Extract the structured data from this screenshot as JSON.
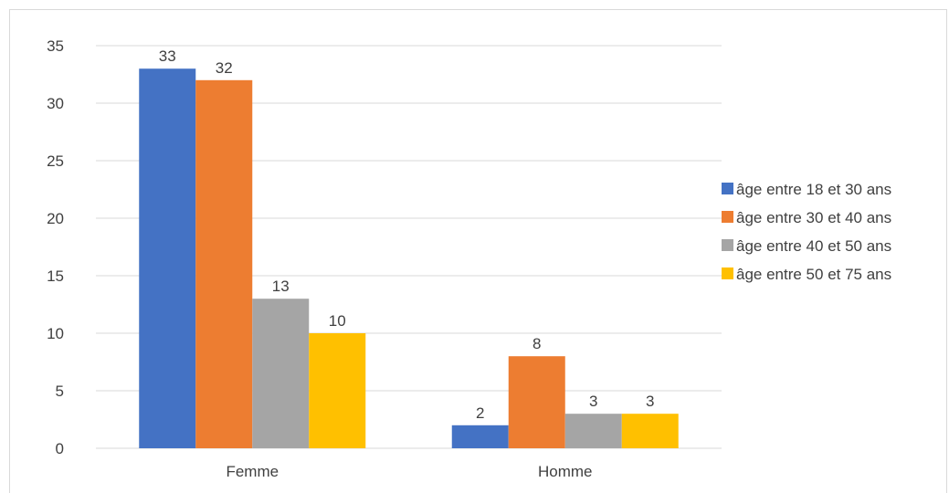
{
  "chart_data": {
    "type": "bar",
    "categories": [
      "Femme",
      "Homme"
    ],
    "series": [
      {
        "name": "âge entre 18 et 30 ans",
        "values": [
          33,
          2
        ],
        "color": "#4472C4"
      },
      {
        "name": "âge entre 30 et 40 ans",
        "values": [
          32,
          8
        ],
        "color": "#ED7D31"
      },
      {
        "name": "âge entre 40 et 50 ans",
        "values": [
          13,
          3
        ],
        "color": "#A5A5A5"
      },
      {
        "name": "âge entre 50 et 75 ans",
        "values": [
          10,
          3
        ],
        "color": "#FFC000"
      }
    ],
    "ylim": [
      0,
      35
    ],
    "yticks": [
      0,
      5,
      10,
      15,
      20,
      25,
      30,
      35
    ],
    "grid": true,
    "legend": "right",
    "data_labels": true
  }
}
